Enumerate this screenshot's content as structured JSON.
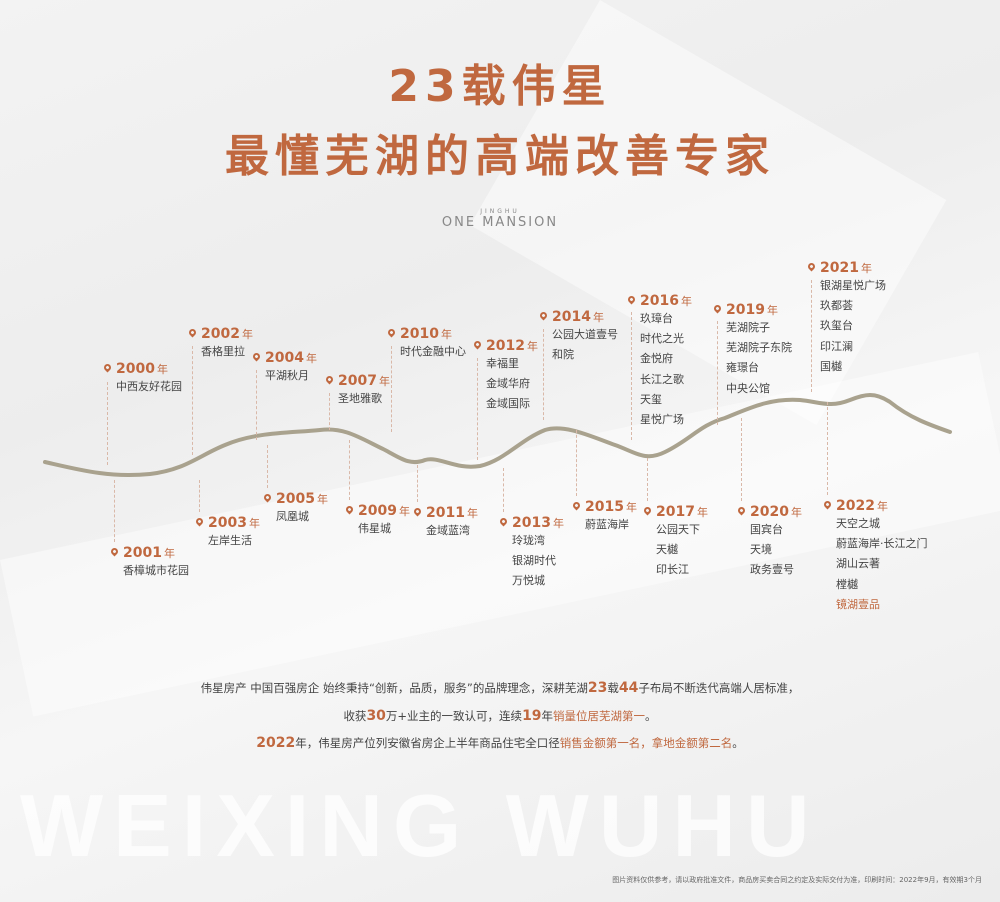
{
  "header": {
    "title_line1": "23载伟星",
    "title_line2": "最懂芜湖的高端改善专家",
    "logo_small": "JINGHU",
    "logo_main": "ONE MANSION"
  },
  "colors": {
    "accent": "#c0683f",
    "river": "#a9a28e",
    "text": "#444444"
  },
  "timeline": {
    "year_suffix": "年",
    "milestones": [
      {
        "year": "2000",
        "projects": [
          "中西友好花园"
        ]
      },
      {
        "year": "2001",
        "projects": [
          "香樟城市花园"
        ]
      },
      {
        "year": "2002",
        "projects": [
          "香格里拉"
        ]
      },
      {
        "year": "2003",
        "projects": [
          "左岸生活"
        ]
      },
      {
        "year": "2004",
        "projects": [
          "平湖秋月"
        ]
      },
      {
        "year": "2005",
        "projects": [
          "凤凰城"
        ]
      },
      {
        "year": "2007",
        "projects": [
          "圣地雅歌"
        ]
      },
      {
        "year": "2009",
        "projects": [
          "伟星城"
        ]
      },
      {
        "year": "2010",
        "projects": [
          "时代金融中心"
        ]
      },
      {
        "year": "2011",
        "projects": [
          "金域蓝湾"
        ]
      },
      {
        "year": "2012",
        "projects": [
          "幸福里",
          "金域华府",
          "金域国际"
        ]
      },
      {
        "year": "2013",
        "projects": [
          "玲珑湾",
          "银湖时代",
          "万悦城"
        ]
      },
      {
        "year": "2014",
        "projects": [
          "公园大道壹号",
          "和院"
        ]
      },
      {
        "year": "2015",
        "projects": [
          "蔚蓝海岸"
        ]
      },
      {
        "year": "2016",
        "projects": [
          "玖璋台",
          "时代之光",
          "金悦府",
          "长江之歌",
          "天玺",
          "星悦广场"
        ]
      },
      {
        "year": "2017",
        "projects": [
          "公园天下",
          "天樾",
          "印长江"
        ]
      },
      {
        "year": "2019",
        "projects": [
          "芜湖院子",
          "芜湖院子东院",
          "雍璟台",
          "中央公馆"
        ]
      },
      {
        "year": "2020",
        "projects": [
          "国宾台",
          "天境",
          "政务壹号"
        ]
      },
      {
        "year": "2021",
        "projects": [
          "银湖星悦广场",
          "玖都荟",
          "玖玺台",
          "印江澜",
          "国樾"
        ]
      },
      {
        "year": "2022",
        "projects": [
          "天空之城",
          "蔚蓝海岸·长江之门",
          "湖山云著",
          "樘樾",
          "镜湖壹品"
        ],
        "highlight_project": "镜湖壹品"
      }
    ]
  },
  "summary": {
    "line1": {
      "a": "伟星房产 中国百强房企 始终秉持“创新，品质，服务”的品牌理念，深耕芜湖",
      "n1": "23",
      "b": "载",
      "n2": "44",
      "c": "子布局不断迭代高端人居标准，"
    },
    "line2": {
      "a": "收获",
      "n1": "30",
      "b": "万+业主的一致认可，连续",
      "n2": "19",
      "c": "年",
      "hl": "销量位居芜湖第一",
      "d": "。"
    },
    "line3": {
      "n1": "2022",
      "a": "年，伟星房产位列安徽省房企上半年商品住宅全口径",
      "hl": "销售金额第一名，拿地金额第二名",
      "b": "。"
    }
  },
  "watermark": "WEIXING WUHU",
  "footer_note": "图片资料仅供参考，请以政府批准文件，商品房买卖合同之约定及实际交付为准，印刷时间：2022年9月，有效期3个月"
}
